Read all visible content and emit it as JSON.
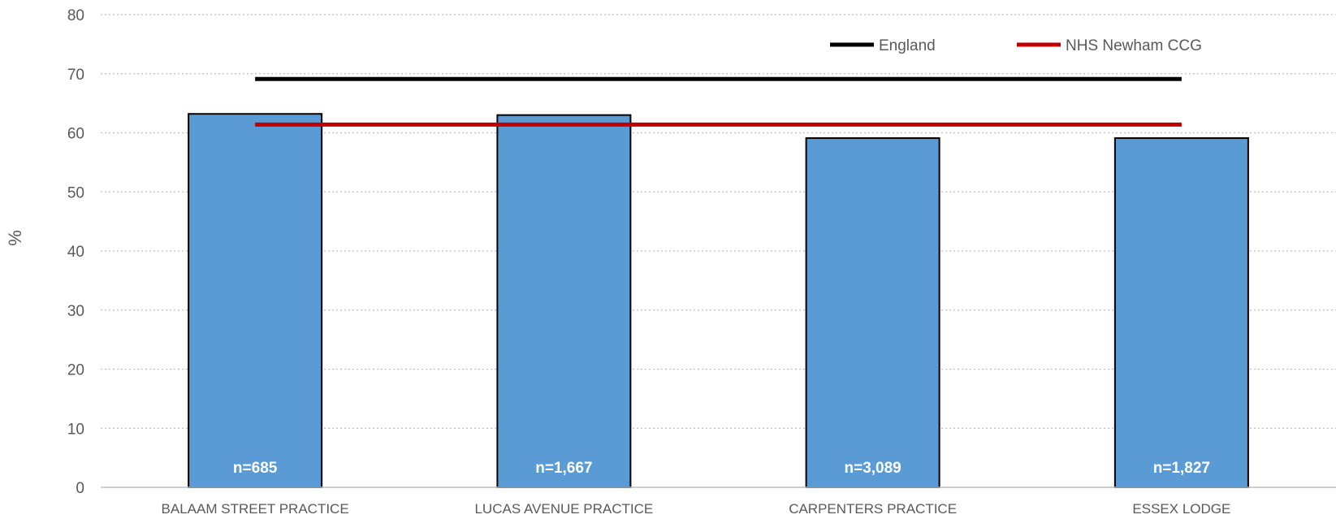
{
  "chart_data": {
    "type": "bar",
    "categories": [
      "BALAAM STREET PRACTICE",
      "LUCAS AVENUE PRACTICE",
      "CARPENTERS PRACTICE",
      "ESSEX LODGE"
    ],
    "values": [
      63.2,
      63.0,
      59.1,
      59.1
    ],
    "bar_labels": [
      "n=685",
      "n=1,667",
      "n=3,089",
      "n=1,827"
    ],
    "reference_lines": [
      {
        "name": "England",
        "value": 69.1,
        "color": "#000000"
      },
      {
        "name": "NHS Newham CCG",
        "value": 61.4,
        "color": "#c00000"
      }
    ],
    "bar_color": "#5b9bd5",
    "ylabel": "%",
    "xlabel": "",
    "title": "",
    "ylim": [
      0,
      80
    ],
    "yticks": [
      0,
      10,
      20,
      30,
      40,
      50,
      60,
      70,
      80
    ],
    "grid": true,
    "legend": "top-right"
  }
}
